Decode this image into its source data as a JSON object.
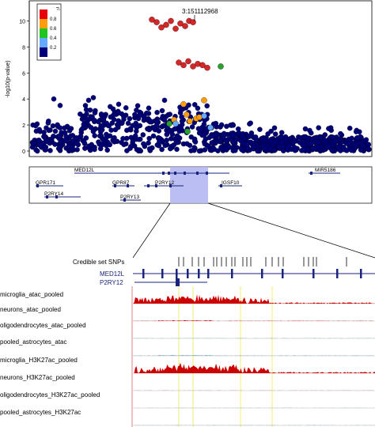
{
  "chart_data": {
    "type": "scatter",
    "title": "",
    "xlabel": "",
    "ylabel": "-log10(p-value)",
    "ylim": [
      0,
      11
    ],
    "yticks": [
      "0",
      "2",
      "4",
      "6",
      "8",
      "10"
    ],
    "grid": false,
    "legend": {
      "title": "r²",
      "position": "top-left",
      "entries": [
        {
          "label": "0.8",
          "color": "#e8000b"
        },
        {
          "label": "0.6",
          "color": "#ff9d0a"
        },
        {
          "label": "0.4",
          "color": "#1fc41f"
        },
        {
          "label": "0.2",
          "color": "#66aaff"
        },
        {
          "label": "",
          "color": "#00007a"
        }
      ]
    },
    "lead_snp_label": "3:151112968",
    "series": [
      {
        "r2_bin": "0.8-1.0",
        "color": "#d62728",
        "y": [
          10.1,
          9.9,
          9.5,
          9.7,
          10.0,
          9.4,
          9.8,
          9.6,
          10.0,
          9.9,
          6.8,
          6.6,
          6.9,
          6.5,
          6.7,
          6.6,
          6.4
        ]
      },
      {
        "r2_bin": "0.6-0.8",
        "color": "#ff9d0a",
        "y": [
          3.6,
          2.8,
          2.5,
          2.3,
          3.9,
          2.6,
          2.4
        ]
      },
      {
        "r2_bin": "0.4-0.6",
        "color": "#2ca02c",
        "y": [
          6.5,
          2.1,
          1.5
        ]
      },
      {
        "r2_bin": "0.2-0.4",
        "color": "#66aaff",
        "y": [
          2.1,
          2.7,
          1.8
        ]
      },
      {
        "r2_bin": "0.0-0.2",
        "color": "#00007a",
        "y": []
      }
    ],
    "genes_top": [
      {
        "label": "MED12L"
      },
      {
        "label": "MIR5186"
      },
      {
        "label": "GPR171"
      },
      {
        "label": "GPR87"
      },
      {
        "label": "P2RY12"
      },
      {
        "label": "IGSF10"
      },
      {
        "label": "P2RY14"
      },
      {
        "label": "P2RY13"
      }
    ],
    "zoom_tracks": {
      "credible_label": "Credible set SNPs",
      "genes": [
        "MED12L",
        "P2RY12"
      ],
      "tracks": [
        {
          "label": "microglia_atac_pooled",
          "color": "#cc0000",
          "level": 0.85
        },
        {
          "label": "neurons_atac_pooled",
          "color": "#cc0000",
          "level": 0.2
        },
        {
          "label": "oligodendrocytes_atac_pooled",
          "color": "#1a8a4a",
          "level": 0.08
        },
        {
          "label": "pooled_astrocytes_atac",
          "color": "#1a6aa0",
          "level": 0.12
        },
        {
          "label": "microglia_H3K27ac_pooled",
          "color": "#cc0000",
          "level": 0.9
        },
        {
          "label": "neurons_H3K27ac_pooled",
          "color": "#cc0000",
          "level": 0.06
        },
        {
          "label": "oligodendrocytes_H3K27ac_pooled",
          "color": "#1a8a4a",
          "level": 0.05
        },
        {
          "label": "pooled_astrocytes_H3K27ac",
          "color": "#1a6aa0",
          "level": 0.08
        }
      ]
    }
  }
}
